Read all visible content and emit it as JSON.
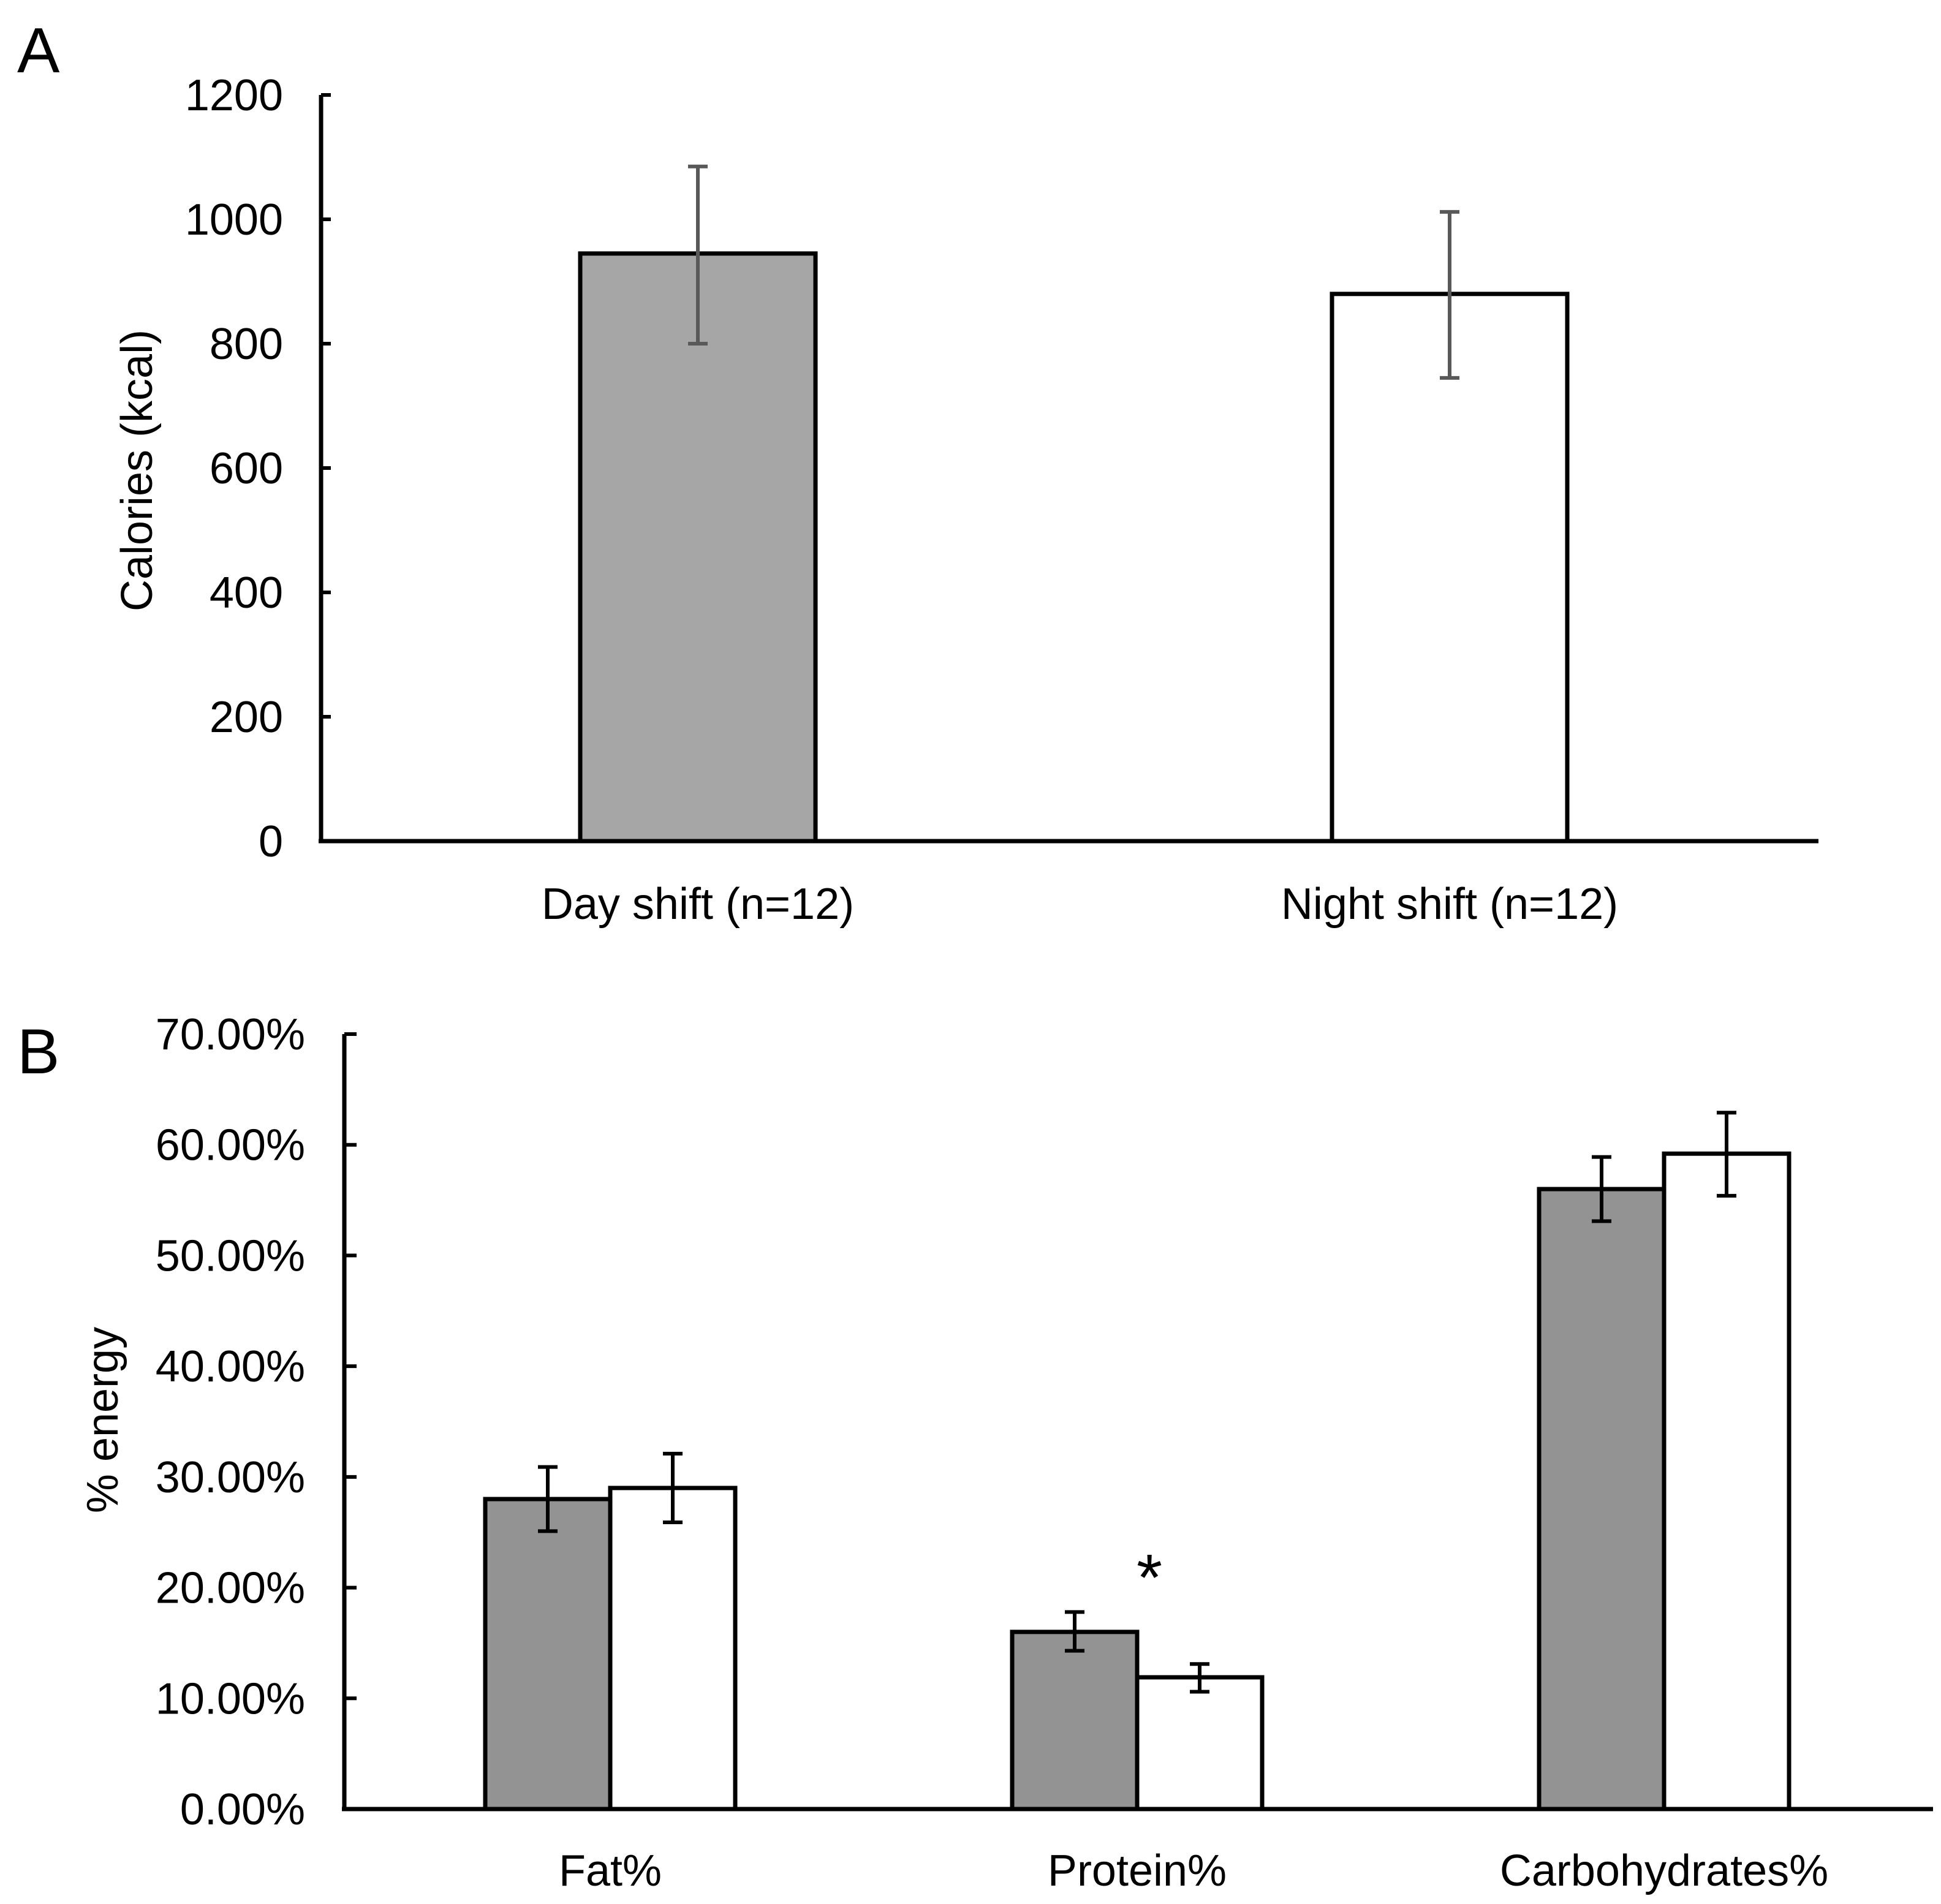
{
  "colors": {
    "day_fill_a": "#a6a6a6",
    "day_fill_b": "#939393",
    "night_fill": "#ffffff",
    "error_bar_a": "#595959",
    "error_bar_b": "#000000"
  },
  "chart_data": [
    {
      "panel": "A",
      "type": "bar",
      "categories": [
        "Day shift (n=12)",
        "Night shift (n=12)"
      ],
      "values": [
        945,
        880
      ],
      "error": [
        [
          800,
          1085
        ],
        [
          745,
          1012
        ]
      ],
      "ylabel": "Calories (kcal)",
      "ylim": [
        0,
        1200
      ],
      "yticks": [
        "0",
        "200",
        "400",
        "600",
        "800",
        "1000",
        "1200"
      ],
      "grid": false
    },
    {
      "panel": "B",
      "type": "bar",
      "categories": [
        "Fat%",
        "Protein%",
        "Carbohydrates%"
      ],
      "series": [
        {
          "values": [
            28.0,
            16.0,
            56.0
          ],
          "error": [
            [
              25.1,
              30.9
            ],
            [
              14.3,
              17.8
            ],
            [
              53.1,
              58.9
            ]
          ]
        },
        {
          "values": [
            29.0,
            11.9,
            59.2
          ],
          "error": [
            [
              25.9,
              32.1
            ],
            [
              10.6,
              13.1
            ],
            [
              55.4,
              62.9
            ]
          ]
        }
      ],
      "ylabel": "% energy",
      "ylim": [
        0,
        70
      ],
      "yticks": [
        "0.00%",
        "10.00%",
        "20.00%",
        "30.00%",
        "40.00%",
        "50.00%",
        "60.00%",
        "70.00%"
      ],
      "annotation": "*",
      "grid": false
    }
  ]
}
